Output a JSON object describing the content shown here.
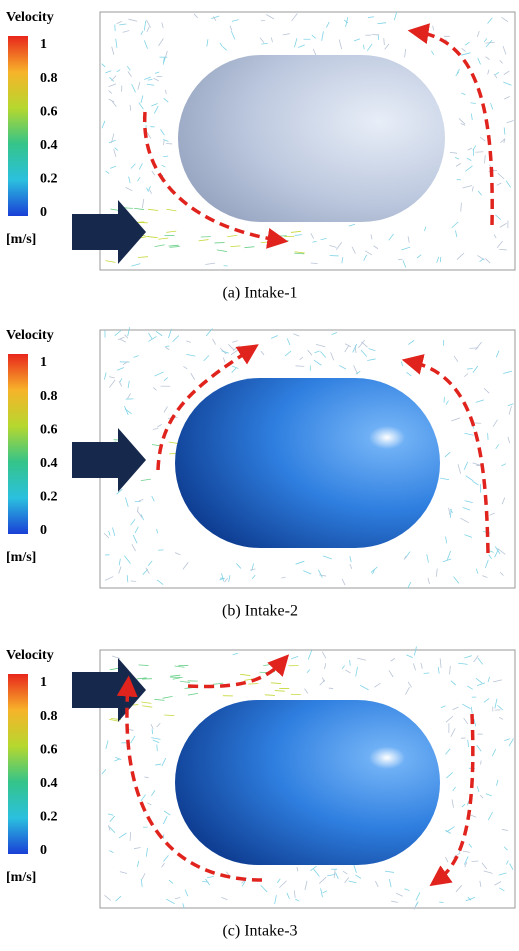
{
  "panels": [
    {
      "legend": {
        "title": "Velocity",
        "ticks": [
          "1",
          "0.8",
          "0.6",
          "0.4",
          "0.2",
          "0"
        ],
        "unit": "[m/s]"
      },
      "caption": "(a)  Intake-1"
    },
    {
      "legend": {
        "title": "Velocity",
        "ticks": [
          "1",
          "0.8",
          "0.6",
          "0.4",
          "0.2",
          "0"
        ],
        "unit": "[m/s]"
      },
      "caption": "(b)  Intake-2"
    },
    {
      "legend": {
        "title": "Velocity",
        "ticks": [
          "1",
          "0.8",
          "0.6",
          "0.4",
          "0.2",
          "0"
        ],
        "unit": "[m/s]"
      },
      "caption": "(c)  Intake-3"
    }
  ]
}
